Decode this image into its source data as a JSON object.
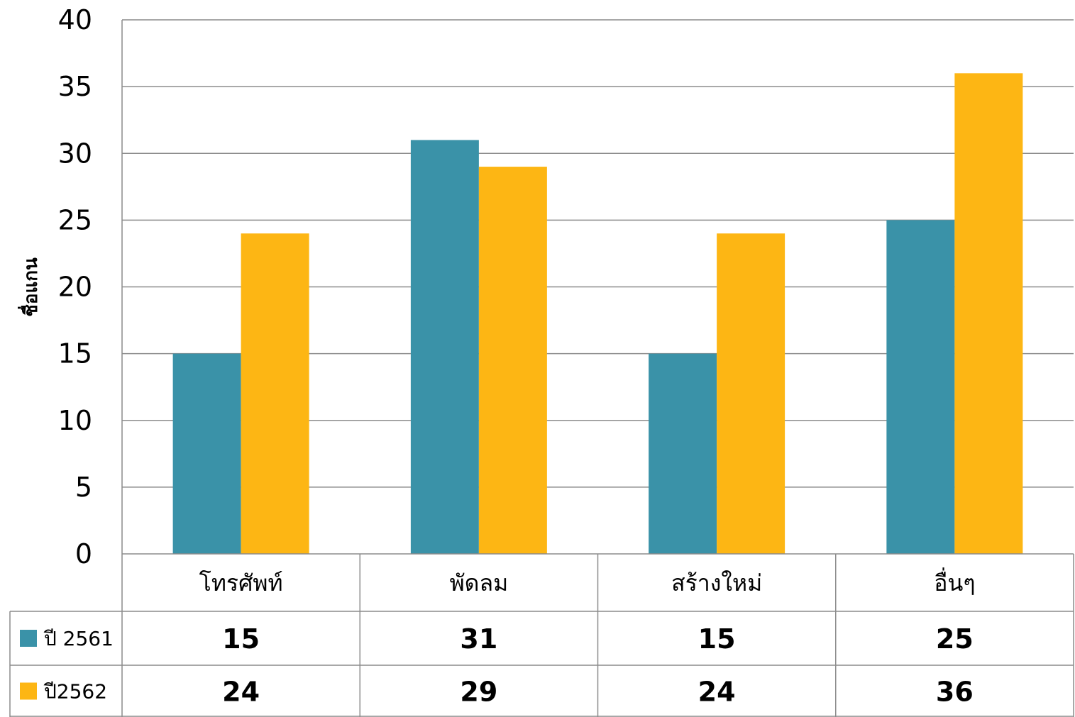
{
  "chart_data": {
    "type": "bar",
    "ylabel": "ชื่อแกน",
    "ylim": [
      0,
      40
    ],
    "yticks": [
      0,
      5,
      10,
      15,
      20,
      25,
      30,
      35,
      40
    ],
    "grid": true,
    "legend": "data-table",
    "categories": [
      "โทรศัพท์",
      "พัดลม",
      "สร้างใหม่",
      "อื่นๆ"
    ],
    "series": [
      {
        "name": "ปี 2561",
        "color": "#3A92A8",
        "values": [
          15,
          31,
          15,
          25
        ]
      },
      {
        "name": "ปี2562",
        "color": "#FDB614",
        "values": [
          24,
          29,
          24,
          36
        ]
      }
    ]
  }
}
